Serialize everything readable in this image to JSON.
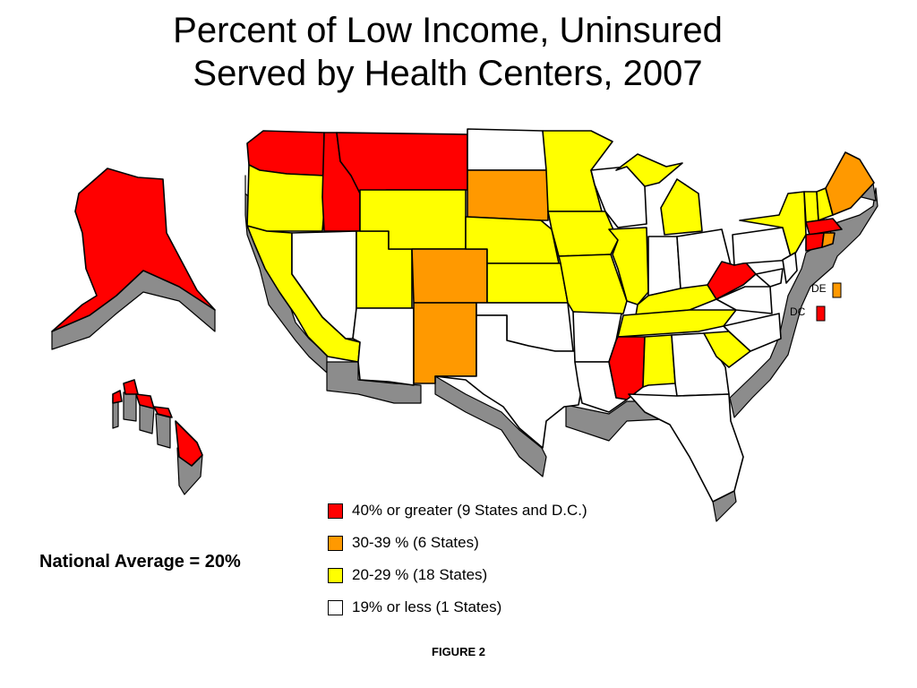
{
  "title": {
    "line1": "Percent of Low Income, Uninsured",
    "line2": "Served by Health Centers, 2007"
  },
  "colors": {
    "red": "#ff0000",
    "orange": "#ff9900",
    "yellow": "#ffff00",
    "white": "#ffffff",
    "extrusion": "#8c8c8c"
  },
  "legend": [
    {
      "label": "40% or greater (9 States and D.C.)",
      "color": "#ff0000"
    },
    {
      "label": "30-39 % (6 States)",
      "color": "#ff9900"
    },
    {
      "label": "20-29 % (18 States)",
      "color": "#ffff00"
    },
    {
      "label": "19% or less (1 States)",
      "color": "#ffffff"
    }
  ],
  "callouts": {
    "de": "DE",
    "dc": "DC"
  },
  "national_average": "National Average = 20%",
  "figure_label": "FIGURE 2"
}
